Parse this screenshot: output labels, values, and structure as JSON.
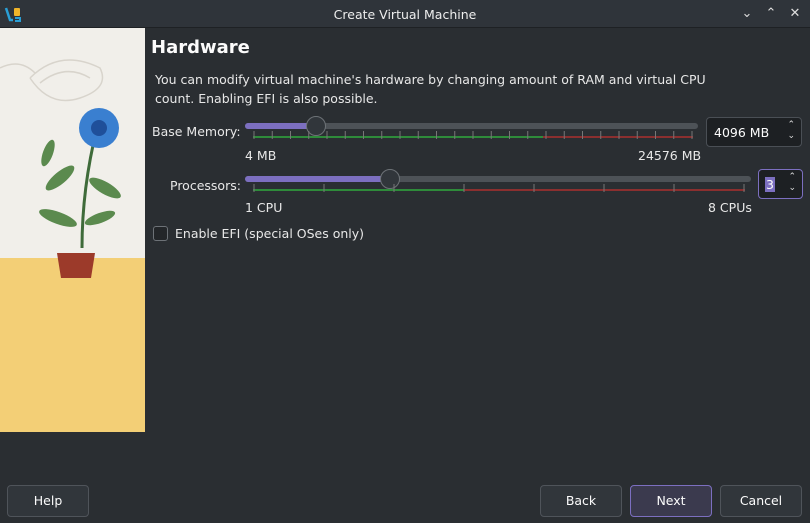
{
  "window": {
    "title": "Create Virtual Machine",
    "controls": [
      "minimize",
      "maximize",
      "close"
    ]
  },
  "page": {
    "title": "Hardware",
    "description": "You can modify virtual machine's hardware by changing amount of RAM and virtual CPU count. Enabling EFI is also possible."
  },
  "memory": {
    "label": "Base Memory:",
    "min_label": "4 MB",
    "max_label": "24576 MB",
    "min": 4,
    "max": 24576,
    "value": 4096,
    "value_text": "4096 MB"
  },
  "processors": {
    "label": "Processors:",
    "min_label": "1 CPU",
    "max_label": "8 CPUs",
    "min": 1,
    "max": 8,
    "value": 3,
    "value_text": "3"
  },
  "efi": {
    "label": "Enable EFI (special OSes only)",
    "checked": false
  },
  "buttons": {
    "help": "Help",
    "back": "Back",
    "next": "Next",
    "cancel": "Cancel"
  },
  "colors": {
    "accent": "#7c6fc0",
    "ok": "#2e8b3a",
    "warn": "#8b2f2f"
  }
}
